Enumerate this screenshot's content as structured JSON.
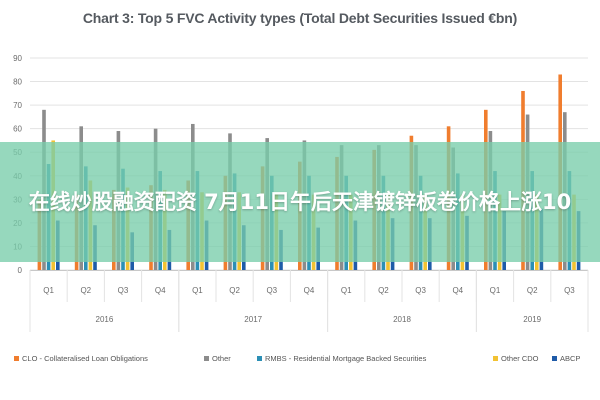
{
  "chart_data": {
    "type": "bar",
    "title": "Chart 3: Top 5 FVC Activity types (Total Debt Securities Issued €bn)",
    "xlabel": "",
    "ylabel": "",
    "ylim": [
      0,
      90
    ],
    "yticks": [
      0,
      10,
      20,
      30,
      40,
      50,
      60,
      70,
      80,
      90
    ],
    "grid": true,
    "legend_position": "bottom",
    "categories": [
      "Q1",
      "Q2",
      "Q3",
      "Q4",
      "Q1",
      "Q2",
      "Q3",
      "Q4",
      "Q1",
      "Q2",
      "Q3",
      "Q4",
      "Q1",
      "Q2",
      "Q3"
    ],
    "years": [
      {
        "label": "2016",
        "start": 0,
        "end": 3
      },
      {
        "label": "2017",
        "start": 4,
        "end": 7
      },
      {
        "label": "2018",
        "start": 8,
        "end": 11
      },
      {
        "label": "2019",
        "start": 12,
        "end": 14
      }
    ],
    "series": [
      {
        "name": "CLO - Collateralised Loan Obligations",
        "color": "#f07d2e",
        "values": [
          30,
          32,
          34,
          36,
          38,
          40,
          44,
          46,
          48,
          51,
          57,
          61,
          68,
          76,
          83
        ]
      },
      {
        "name": "Other",
        "color": "#8c8c8c",
        "values": [
          68,
          61,
          59,
          60,
          62,
          58,
          56,
          55,
          53,
          53,
          53,
          52,
          59,
          66,
          67
        ]
      },
      {
        "name": "RMBS - Residential Mortgage Backed Securities",
        "color": "#2b8fb5",
        "values": [
          45,
          44,
          43,
          42,
          42,
          41,
          40,
          40,
          40,
          40,
          40,
          41,
          42,
          42,
          42
        ]
      },
      {
        "name": "Other CDO",
        "color": "#f2c232",
        "values": [
          55,
          38,
          35,
          34,
          33,
          33,
          32,
          32,
          32,
          32,
          32,
          32,
          32,
          32,
          32
        ]
      },
      {
        "name": "ABCP",
        "color": "#1f5ba8",
        "values": [
          21,
          19,
          16,
          17,
          21,
          19,
          17,
          18,
          21,
          22,
          22,
          23,
          25,
          26,
          25
        ]
      }
    ]
  },
  "overlay": {
    "text": "在线炒股融资配资 7月11日午后天津镀锌板卷价格上涨10"
  },
  "colors": {
    "grid": "#e3e3e3",
    "axis": "#c8c8c8",
    "banner": "#78cdaa"
  }
}
